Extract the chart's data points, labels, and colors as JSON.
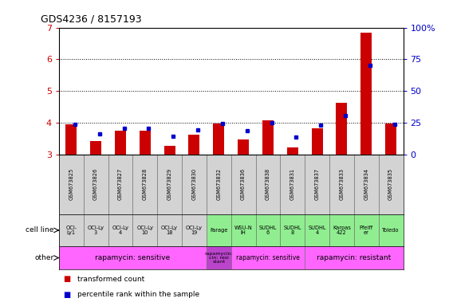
{
  "title": "GDS4236 / 8157193",
  "samples": [
    "GSM673825",
    "GSM673826",
    "GSM673827",
    "GSM673828",
    "GSM673829",
    "GSM673830",
    "GSM673832",
    "GSM673836",
    "GSM673838",
    "GSM673831",
    "GSM673837",
    "GSM673833",
    "GSM673834",
    "GSM673835"
  ],
  "red_values": [
    3.95,
    3.42,
    3.75,
    3.75,
    3.27,
    3.62,
    3.98,
    3.48,
    4.07,
    3.22,
    3.82,
    4.62,
    6.83,
    3.98
  ],
  "blue_values": [
    23.5,
    16.0,
    20.5,
    20.5,
    14.5,
    19.5,
    24.5,
    18.5,
    25.0,
    13.5,
    23.0,
    31.0,
    70.0,
    24.0
  ],
  "ymin": 3.0,
  "ymax": 7.0,
  "yticks": [
    3,
    4,
    5,
    6,
    7
  ],
  "right_yticks": [
    0,
    25,
    50,
    75,
    100
  ],
  "right_yticklabels": [
    "0",
    "25",
    "50",
    "75",
    "100%"
  ],
  "cell_line_labels": [
    "OCI-\nLy1",
    "OCI-Ly\n3",
    "OCI-Ly\n4",
    "OCI-Ly\n10",
    "OCI-Ly\n18",
    "OCI-Ly\n19",
    "Farage",
    "WSU-N\nIH",
    "SUDHL\n6",
    "SUDHL\n8",
    "SUDHL\n4",
    "Karpas\n422",
    "Pfeiff\ner",
    "Toledo"
  ],
  "cell_line_bg": [
    "#d3d3d3",
    "#d3d3d3",
    "#d3d3d3",
    "#d3d3d3",
    "#d3d3d3",
    "#d3d3d3",
    "#90ee90",
    "#90ee90",
    "#90ee90",
    "#90ee90",
    "#90ee90",
    "#90ee90",
    "#90ee90",
    "#90ee90"
  ],
  "other_groups": [
    {
      "label": "rapamycin: sensitive",
      "start": 0,
      "end": 6,
      "color": "#ff66ff",
      "fontsize": 6.5
    },
    {
      "label": "rapamycin:\ncin: resi\nstant",
      "start": 6,
      "end": 7,
      "color": "#bb44cc",
      "fontsize": 4.5
    },
    {
      "label": "rapamycin: sensitive",
      "start": 7,
      "end": 10,
      "color": "#ff66ff",
      "fontsize": 5.5
    },
    {
      "label": "rapamycin: resistant",
      "start": 10,
      "end": 14,
      "color": "#ff66ff",
      "fontsize": 6.5
    }
  ],
  "red_color": "#cc0000",
  "blue_color": "#0000cc",
  "left_tick_color": "#cc0000",
  "right_tick_color": "#0000cc"
}
